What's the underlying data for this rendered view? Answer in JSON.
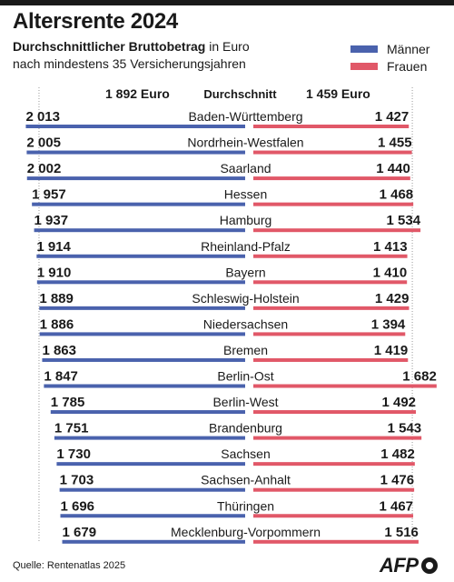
{
  "header": {
    "title": "Altersrente 2024",
    "subtitle_bold": "Durchschnittlicher Bruttobetrag",
    "subtitle_rest": " in Euro",
    "subtitle_line2": "nach mindestens 35 Versicherungsjahren"
  },
  "legend": {
    "men": "Männer",
    "women": "Frauen"
  },
  "colors": {
    "men": "#4a62ad",
    "women": "#e15868"
  },
  "average_row": {
    "men": "1 892 Euro",
    "label": "Durchschnitt",
    "women": "1 459 Euro"
  },
  "footer": {
    "source": "Quelle: Rentenatlas 2025",
    "logo": "AFP"
  },
  "chart_data": {
    "type": "bar",
    "title": "Altersrente 2024",
    "categories": [
      "Baden-Württemberg",
      "Nordrhein-Westfalen",
      "Saarland",
      "Hessen",
      "Hamburg",
      "Rheinland-Pfalz",
      "Bayern",
      "Schleswig-Holstein",
      "Niedersachsen",
      "Bremen",
      "Berlin-Ost",
      "Berlin-West",
      "Brandenburg",
      "Sachsen",
      "Sachsen-Anhalt",
      "Thüringen",
      "Mecklenburg-Vorpommern"
    ],
    "series": [
      {
        "name": "Männer",
        "values": [
          2013,
          2005,
          2002,
          1957,
          1937,
          1914,
          1910,
          1889,
          1886,
          1863,
          1847,
          1785,
          1751,
          1730,
          1703,
          1696,
          1679
        ]
      },
      {
        "name": "Frauen",
        "values": [
          1427,
          1455,
          1440,
          1468,
          1534,
          1413,
          1410,
          1429,
          1394,
          1419,
          1682,
          1492,
          1543,
          1482,
          1476,
          1467,
          1516
        ]
      }
    ],
    "value_labels": {
      "men": [
        "2 013",
        "2 005",
        "2 002",
        "1 957",
        "1 937",
        "1 914",
        "1 910",
        "1 889",
        "1 886",
        "1 863",
        "1 847",
        "1 785",
        "1 751",
        "1 730",
        "1 703",
        "1 696",
        "1 679"
      ],
      "women": [
        "1 427",
        "1 455",
        "1 440",
        "1 468",
        "1 534",
        "1 413",
        "1 410",
        "1 429",
        "1 394",
        "1 419",
        "1 682",
        "1 492",
        "1 543",
        "1 482",
        "1 476",
        "1 467",
        "1 516"
      ]
    },
    "averages": {
      "men": 1892,
      "women": 1459
    },
    "legend_position": "top-right",
    "grid": false
  }
}
